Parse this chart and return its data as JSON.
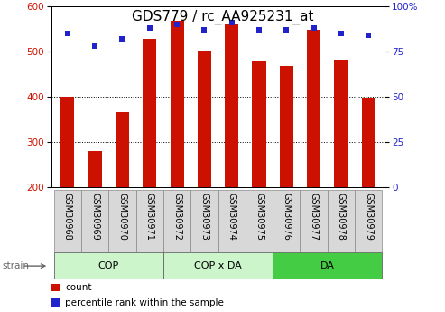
{
  "title": "GDS779 / rc_AA925231_at",
  "samples": [
    "GSM30968",
    "GSM30969",
    "GSM30970",
    "GSM30971",
    "GSM30972",
    "GSM30973",
    "GSM30974",
    "GSM30975",
    "GSM30976",
    "GSM30977",
    "GSM30978",
    "GSM30979"
  ],
  "counts": [
    400,
    280,
    365,
    528,
    568,
    502,
    562,
    480,
    468,
    548,
    482,
    398
  ],
  "percentiles": [
    85,
    78,
    82,
    88,
    90,
    87,
    91,
    87,
    87,
    88,
    85,
    84
  ],
  "ylim": [
    200,
    600
  ],
  "yticks": [
    200,
    300,
    400,
    500,
    600
  ],
  "y2lim": [
    0,
    100
  ],
  "y2ticks": [
    0,
    25,
    50,
    75,
    100
  ],
  "y2labels": [
    "0",
    "25",
    "50",
    "75",
    "100%"
  ],
  "bar_color": "#cc1100",
  "dot_color": "#2222cc",
  "groups": [
    {
      "label": "COP",
      "start": 0,
      "end": 3,
      "color": "#ccf5cc"
    },
    {
      "label": "COP x DA",
      "start": 4,
      "end": 7,
      "color": "#ccf5cc"
    },
    {
      "label": "DA",
      "start": 8,
      "end": 11,
      "color": "#44cc44"
    }
  ],
  "strain_label": "strain",
  "legend_count_label": "count",
  "legend_pct_label": "percentile rank within the sample",
  "title_fontsize": 11,
  "tick_fontsize": 7.5,
  "label_fontsize": 7,
  "group_fontsize": 8,
  "bar_width": 0.5,
  "dot_size": 25,
  "sample_cell_color": "#d8d8d8",
  "background_color": "#ffffff"
}
